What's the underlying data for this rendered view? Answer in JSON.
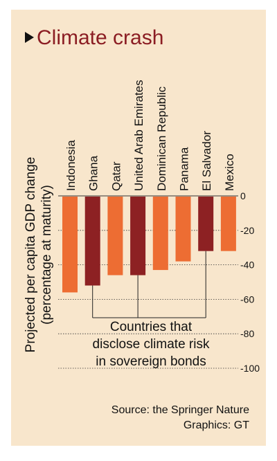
{
  "title": "Climate crash",
  "source_line": "Source: the Springer Nature",
  "graphics_line": "Graphics: GT",
  "colors": {
    "background": "#f8e6cc",
    "title": "#8b1d23",
    "disclose": "#8d2123",
    "other": "#ed6d33"
  },
  "chart_data": {
    "type": "bar",
    "ylabel": "Projected per capita GDP change (percentage at maturity)",
    "ylabel_lines": [
      "Projected per capita GDP change",
      "(percentage at maturity)"
    ],
    "ylim": [
      -100,
      0
    ],
    "yticks": [
      0,
      -20,
      -40,
      -60,
      -80,
      -100
    ],
    "ytick_labels": [
      "0",
      "-20",
      "-40",
      "-60",
      "-80",
      "-100"
    ],
    "categories": [
      "Indonesia",
      "Ghana",
      "Qatar",
      "United Arab Emirates",
      "Dominican Republic",
      "Panama",
      "El Salvador",
      "Mexico"
    ],
    "values": [
      -56,
      -52,
      -46,
      -46,
      -43,
      -38,
      -32,
      -32
    ],
    "discloses_climate_risk": [
      false,
      true,
      false,
      true,
      false,
      false,
      true,
      false
    ],
    "annotation_lines": [
      "Countries that",
      "disclose climate risk",
      "in sovereign bonds"
    ],
    "grid": false,
    "legend": "none"
  }
}
